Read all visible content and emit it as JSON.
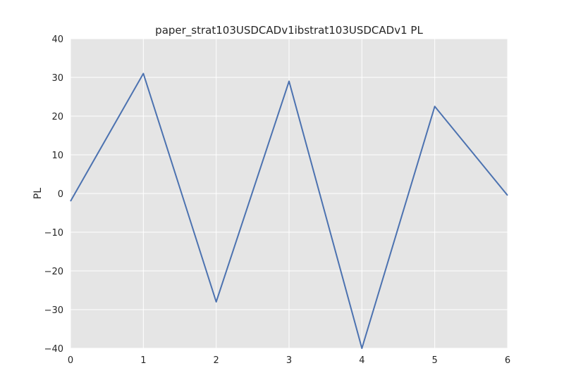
{
  "chart_data": {
    "type": "line",
    "title": "paper_strat103USDCADv1ibstrat103USDCADv1 PL",
    "xlabel": "",
    "ylabel": "PL",
    "xlim": [
      0,
      6
    ],
    "ylim": [
      -40,
      40
    ],
    "xticks": [
      0,
      1,
      2,
      3,
      4,
      5,
      6
    ],
    "yticks": [
      40,
      30,
      20,
      10,
      0,
      -10,
      -20,
      -30,
      -40
    ],
    "grid": true,
    "series": [
      {
        "x": [
          0,
          1,
          2,
          3,
          4,
          5,
          6
        ],
        "values": [
          -2,
          31,
          -28,
          29,
          -40,
          22.5,
          -0.5
        ]
      }
    ]
  },
  "colors": {
    "background": "#e5e5e5",
    "grid": "#ffffff",
    "line": "#4c72b0",
    "text": "#262626"
  }
}
